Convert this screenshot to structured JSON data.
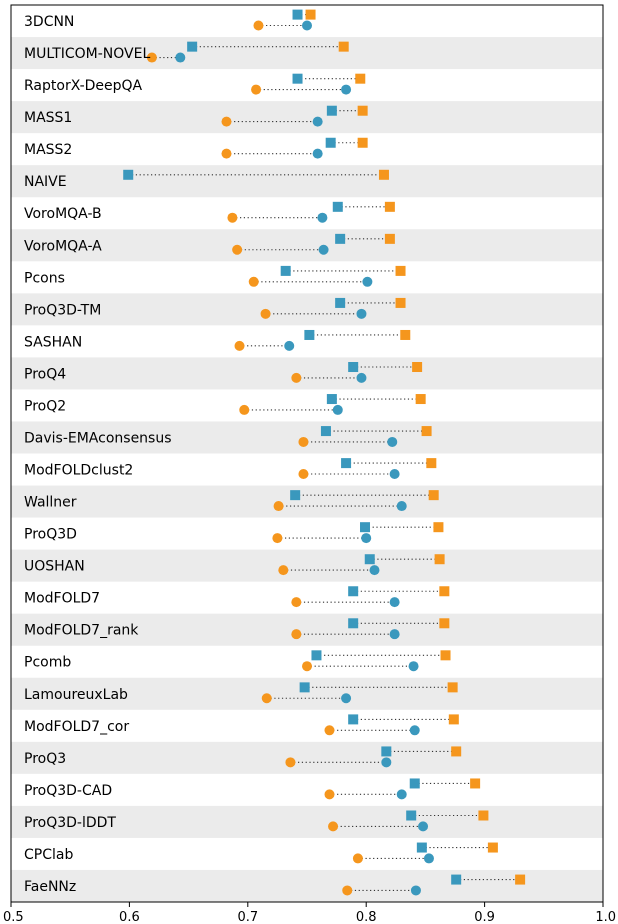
{
  "chart_data": {
    "type": "scatter",
    "title": "",
    "xlabel": "",
    "ylabel": "",
    "xlim": [
      0.5,
      1.0
    ],
    "xticks": [
      "0.5",
      "0.6",
      "0.7",
      "0.8",
      "0.9",
      "1.0"
    ],
    "xtick_values": [
      0.5,
      0.6,
      0.7,
      0.8,
      0.9,
      1.0
    ],
    "grid": false,
    "legend": "none",
    "colors": {
      "orange": "#f5961d",
      "blue": "#3a98bd",
      "band": "#ebebeb",
      "dots": "#333333"
    },
    "rows": [
      {
        "name": "3DCNN",
        "orange_square": 0.753,
        "blue_square": 0.742,
        "orange_circle": 0.709,
        "blue_circle": 0.75
      },
      {
        "name": "MULTICOM-NOVEL",
        "orange_square": 0.781,
        "blue_square": 0.653,
        "orange_circle": 0.619,
        "blue_circle": 0.643
      },
      {
        "name": "RaptorX-DeepQA",
        "orange_square": 0.795,
        "blue_square": 0.742,
        "orange_circle": 0.707,
        "blue_circle": 0.783
      },
      {
        "name": "MASS1",
        "orange_square": 0.797,
        "blue_square": 0.771,
        "orange_circle": 0.682,
        "blue_circle": 0.759
      },
      {
        "name": "MASS2",
        "orange_square": 0.797,
        "blue_square": 0.77,
        "orange_circle": 0.682,
        "blue_circle": 0.759
      },
      {
        "name": "NAIVE",
        "orange_square": 0.815,
        "blue_square": 0.599,
        "orange_circle": null,
        "blue_circle": null
      },
      {
        "name": "VoroMQA-B",
        "orange_square": 0.82,
        "blue_square": 0.776,
        "orange_circle": 0.687,
        "blue_circle": 0.763
      },
      {
        "name": "VoroMQA-A",
        "orange_square": 0.82,
        "blue_square": 0.778,
        "orange_circle": 0.691,
        "blue_circle": 0.764
      },
      {
        "name": "Pcons",
        "orange_square": 0.829,
        "blue_square": 0.732,
        "orange_circle": 0.705,
        "blue_circle": 0.801
      },
      {
        "name": "ProQ3D-TM",
        "orange_square": 0.829,
        "blue_square": 0.778,
        "orange_circle": 0.715,
        "blue_circle": 0.796
      },
      {
        "name": "SASHAN",
        "orange_square": 0.833,
        "blue_square": 0.752,
        "orange_circle": 0.693,
        "blue_circle": 0.735
      },
      {
        "name": "ProQ4",
        "orange_square": 0.843,
        "blue_square": 0.789,
        "orange_circle": 0.741,
        "blue_circle": 0.796
      },
      {
        "name": "ProQ2",
        "orange_square": 0.846,
        "blue_square": 0.771,
        "orange_circle": 0.697,
        "blue_circle": 0.776
      },
      {
        "name": "Davis-EMAconsensus",
        "orange_square": 0.851,
        "blue_square": 0.766,
        "orange_circle": 0.747,
        "blue_circle": 0.822
      },
      {
        "name": "ModFOLDclust2",
        "orange_square": 0.855,
        "blue_square": 0.783,
        "orange_circle": 0.747,
        "blue_circle": 0.824
      },
      {
        "name": "Wallner",
        "orange_square": 0.857,
        "blue_square": 0.74,
        "orange_circle": 0.726,
        "blue_circle": 0.83
      },
      {
        "name": "ProQ3D",
        "orange_square": 0.861,
        "blue_square": 0.799,
        "orange_circle": 0.725,
        "blue_circle": 0.8
      },
      {
        "name": "UOSHAN",
        "orange_square": 0.862,
        "blue_square": 0.803,
        "orange_circle": 0.73,
        "blue_circle": 0.807
      },
      {
        "name": "ModFOLD7",
        "orange_square": 0.866,
        "blue_square": 0.789,
        "orange_circle": 0.741,
        "blue_circle": 0.824
      },
      {
        "name": "ModFOLD7_rank",
        "orange_square": 0.866,
        "blue_square": 0.789,
        "orange_circle": 0.741,
        "blue_circle": 0.824
      },
      {
        "name": "Pcomb",
        "orange_square": 0.867,
        "blue_square": 0.758,
        "orange_circle": 0.75,
        "blue_circle": 0.84
      },
      {
        "name": "LamoureuxLab",
        "orange_square": 0.873,
        "blue_square": 0.748,
        "orange_circle": 0.716,
        "blue_circle": 0.783
      },
      {
        "name": "ModFOLD7_cor",
        "orange_square": 0.874,
        "blue_square": 0.789,
        "orange_circle": 0.769,
        "blue_circle": 0.841
      },
      {
        "name": "ProQ3",
        "orange_square": 0.876,
        "blue_square": 0.817,
        "orange_circle": 0.736,
        "blue_circle": 0.817
      },
      {
        "name": "ProQ3D-CAD",
        "orange_square": 0.892,
        "blue_square": 0.841,
        "orange_circle": 0.769,
        "blue_circle": 0.83
      },
      {
        "name": "ProQ3D-lDDT",
        "orange_square": 0.899,
        "blue_square": 0.838,
        "orange_circle": 0.772,
        "blue_circle": 0.848
      },
      {
        "name": "CPClab",
        "orange_square": 0.907,
        "blue_square": 0.847,
        "orange_circle": 0.793,
        "blue_circle": 0.853
      },
      {
        "name": "FaeNNz",
        "orange_square": 0.93,
        "blue_square": 0.876,
        "orange_circle": 0.784,
        "blue_circle": 0.842
      }
    ]
  }
}
